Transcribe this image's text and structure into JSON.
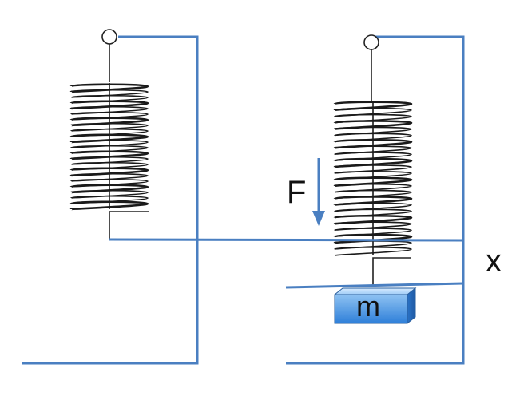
{
  "labels": {
    "force": "F",
    "displacement": "x",
    "mass": "m"
  },
  "colors": {
    "stand": "#4a7fc1",
    "spring": "#1a1a1a",
    "arrow": "#4a7fc1",
    "mass_fill_top": "#8ec2f2",
    "mass_fill_bottom": "#2e7fd9",
    "mass_edge": "#2a5f9e",
    "text": "#111111"
  }
}
